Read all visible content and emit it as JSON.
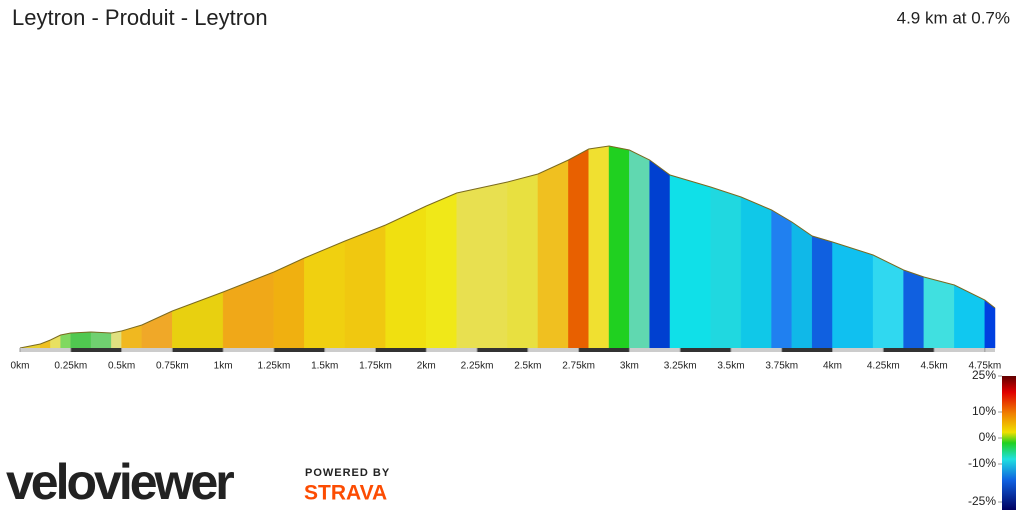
{
  "chart_data": {
    "type": "area",
    "title": "Leytron - Produit - Leytron",
    "subtitle": "4.9 km at 0.7%",
    "x": [
      0,
      0.1,
      0.15,
      0.2,
      0.25,
      0.35,
      0.45,
      0.5,
      0.6,
      0.75,
      1.0,
      1.25,
      1.4,
      1.6,
      1.8,
      2.0,
      2.15,
      2.4,
      2.55,
      2.7,
      2.8,
      2.9,
      3.0,
      3.1,
      3.2,
      3.4,
      3.55,
      3.7,
      3.8,
      3.9,
      4.0,
      4.2,
      4.35,
      4.45,
      4.6,
      4.75,
      4.8
    ],
    "values": [
      0,
      4,
      8,
      13,
      15,
      16,
      15,
      17,
      23,
      37,
      56,
      76,
      90,
      107,
      123,
      142,
      155,
      166,
      174,
      188,
      199,
      202,
      198,
      188,
      173,
      161,
      151,
      138,
      126,
      112,
      106,
      93,
      78,
      71,
      63,
      48,
      40
    ],
    "segment_colors": [
      "#e8d030",
      "#f0c020",
      "#e8e060",
      "#80d860",
      "#50c850",
      "#70d070",
      "#e0e080",
      "#f0b820",
      "#f0a828",
      "#e8d010",
      "#f0a818",
      "#f0b010",
      "#f0d010",
      "#f0c810",
      "#f0e010",
      "#f0e818",
      "#e8e050",
      "#e8e040",
      "#f0c020",
      "#e86000",
      "#f0e030",
      "#20d020",
      "#60d8b0",
      "#0040d0",
      "#10e0e8",
      "#20d8e0",
      "#10c8e8",
      "#2080f0",
      "#10b8e8",
      "#1060e0",
      "#10c0f0",
      "#30d8f0",
      "#1060e0",
      "#40e0e0",
      "#10c8f0",
      "#0040e0"
    ],
    "xlim": [
      0,
      4.8
    ],
    "ylim": [
      0,
      220
    ],
    "xticks": [
      {
        "value": 0,
        "label": "0km"
      },
      {
        "value": 0.25,
        "label": "0.25km"
      },
      {
        "value": 0.5,
        "label": "0.5km"
      },
      {
        "value": 0.75,
        "label": "0.75km"
      },
      {
        "value": 1,
        "label": "1km"
      },
      {
        "value": 1.25,
        "label": "1.25km"
      },
      {
        "value": 1.5,
        "label": "1.5km"
      },
      {
        "value": 1.75,
        "label": "1.75km"
      },
      {
        "value": 2,
        "label": "2km"
      },
      {
        "value": 2.25,
        "label": "2.25km"
      },
      {
        "value": 2.5,
        "label": "2.5km"
      },
      {
        "value": 2.75,
        "label": "2.75km"
      },
      {
        "value": 3,
        "label": "3km"
      },
      {
        "value": 3.25,
        "label": "3.25km"
      },
      {
        "value": 3.5,
        "label": "3.5km"
      },
      {
        "value": 3.75,
        "label": "3.75km"
      },
      {
        "value": 4,
        "label": "4km"
      },
      {
        "value": 4.25,
        "label": "4.25km"
      },
      {
        "value": 4.5,
        "label": "4.5km"
      },
      {
        "value": 4.75,
        "label": "4.75km"
      }
    ],
    "colorbar_ticks": [
      {
        "value": 25,
        "label": "25%"
      },
      {
        "value": 10,
        "label": "10%"
      },
      {
        "value": 0,
        "label": "0%"
      },
      {
        "value": -10,
        "label": "-10%"
      },
      {
        "value": -25,
        "label": "-25%"
      }
    ]
  },
  "branding": {
    "logo": "veloviewer",
    "powered_by": "POWERED BY",
    "strava": "STRAVA"
  }
}
